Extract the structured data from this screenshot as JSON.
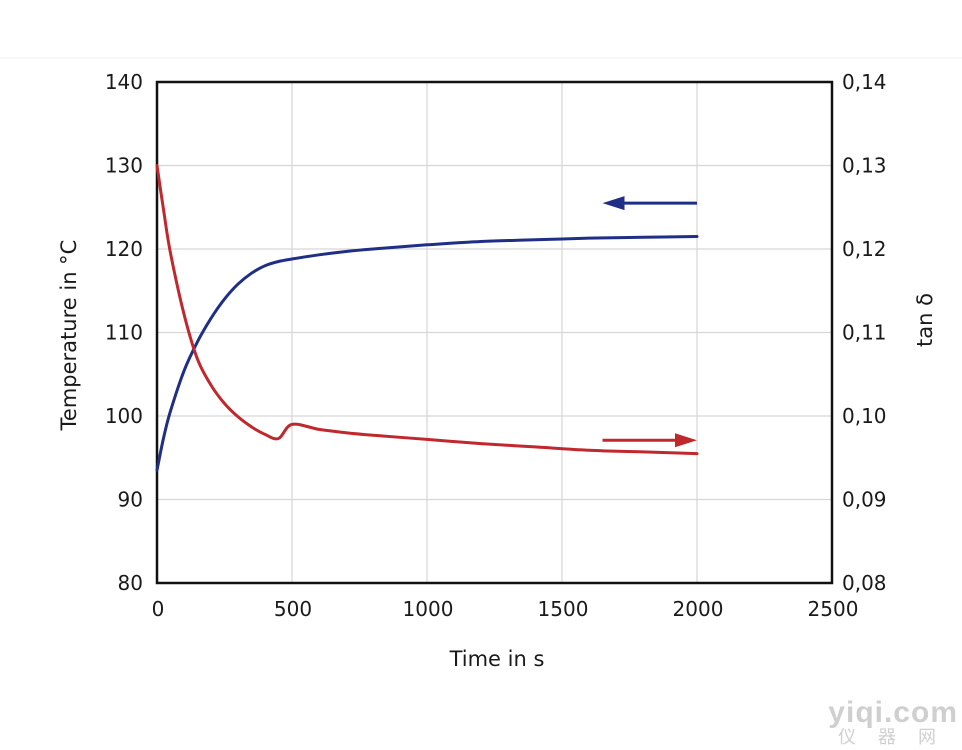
{
  "chart_data": {
    "type": "line",
    "title": "",
    "xlabel": "Time in s",
    "ylabel_left": "Temperature in °C",
    "ylabel_right": "tan δ",
    "xlim": [
      0,
      2500
    ],
    "ylim_left": [
      80,
      140
    ],
    "ylim_right": [
      0.08,
      0.14
    ],
    "x_ticks": [
      "0",
      "500",
      "1000",
      "1500",
      "2000",
      "2500"
    ],
    "y_ticks_left": [
      "80",
      "90",
      "100",
      "110",
      "120",
      "130",
      "140"
    ],
    "y_ticks_right": [
      "0,08",
      "0,09",
      "0,10",
      "0,11",
      "0,12",
      "0,13",
      "0,14"
    ],
    "grid": true,
    "series": [
      {
        "axis": "left",
        "color": "#1f2f86",
        "arrow": "left",
        "x": [
          0,
          25,
          50,
          100,
          150,
          200,
          250,
          300,
          350,
          400,
          450,
          500,
          600,
          700,
          800,
          1000,
          1200,
          1400,
          1600,
          1800,
          2000
        ],
        "y": [
          93.5,
          97.5,
          100.6,
          105.4,
          108.9,
          111.7,
          114.0,
          115.8,
          117.1,
          118.0,
          118.5,
          118.8,
          119.3,
          119.7,
          120.0,
          120.5,
          120.9,
          121.1,
          121.3,
          121.4,
          121.5
        ]
      },
      {
        "axis": "right",
        "color": "#c0282d",
        "arrow": "right",
        "x": [
          0,
          25,
          50,
          100,
          150,
          200,
          250,
          300,
          350,
          400,
          450,
          500,
          600,
          700,
          800,
          1000,
          1200,
          1400,
          1600,
          1800,
          2000
        ],
        "y": [
          0.13,
          0.1245,
          0.1195,
          0.1122,
          0.1068,
          0.1037,
          0.1015,
          0.0999,
          0.0987,
          0.0978,
          0.0973,
          0.099,
          0.0984,
          0.098,
          0.0977,
          0.0972,
          0.0967,
          0.0963,
          0.0959,
          0.0957,
          0.0955
        ]
      }
    ]
  },
  "watermark": {
    "main": "yiqi.com",
    "sub": "仪器网"
  }
}
